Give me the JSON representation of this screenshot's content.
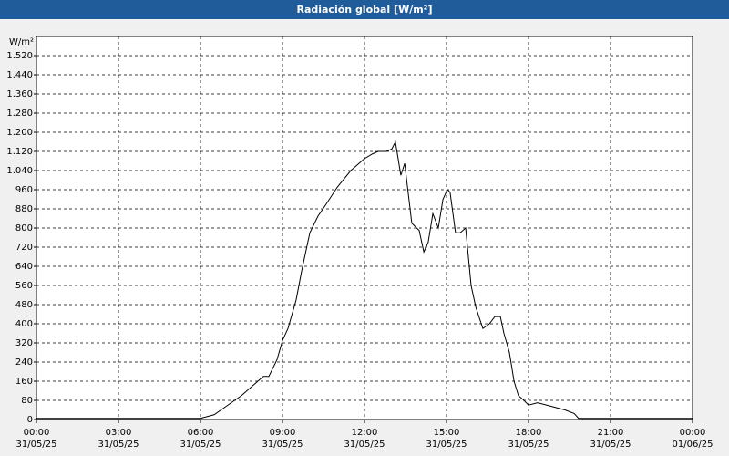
{
  "chart_data": {
    "type": "line",
    "title": "Radiación global [W/m²]",
    "y_label": "W/m²",
    "x": [
      0,
      3,
      6,
      6.5,
      7,
      7.5,
      8,
      8.3,
      8.5,
      8.8,
      9,
      9.2,
      9.5,
      9.7,
      10,
      10.3,
      10.6,
      11,
      11.5,
      12,
      12.3,
      12.5,
      12.8,
      13,
      13.13,
      13.33,
      13.47,
      13.73,
      14,
      14.17,
      14.33,
      14.5,
      14.7,
      14.87,
      15.03,
      15.13,
      15.33,
      15.5,
      15.7,
      15.9,
      16.07,
      16.33,
      16.57,
      16.77,
      16.97,
      17.1,
      17.3,
      17.47,
      17.63,
      17.83,
      18,
      18.33,
      18.67,
      19.33,
      19.67,
      19.83,
      24
    ],
    "series": [
      {
        "name": "Radiación global",
        "color": "#000000",
        "values": [
          5,
          5,
          5,
          20,
          60,
          100,
          150,
          180,
          180,
          250,
          330,
          380,
          500,
          620,
          780,
          850,
          900,
          970,
          1040,
          1090,
          1110,
          1120,
          1120,
          1130,
          1160,
          1020,
          1070,
          820,
          790,
          700,
          740,
          860,
          800,
          920,
          960,
          950,
          780,
          780,
          800,
          560,
          470,
          380,
          400,
          430,
          430,
          360,
          280,
          160,
          100,
          80,
          60,
          70,
          60,
          40,
          25,
          5,
          5
        ]
      }
    ],
    "xlim": [
      0,
      24
    ],
    "ylim": [
      0,
      1600
    ],
    "xticks": [
      {
        "value": 0,
        "label": "00:00\n31/05/25"
      },
      {
        "value": 3,
        "label": "03:00\n31/05/25"
      },
      {
        "value": 6,
        "label": "06:00\n31/05/25"
      },
      {
        "value": 9,
        "label": "09:00\n31/05/25"
      },
      {
        "value": 12,
        "label": "12:00\n31/05/25"
      },
      {
        "value": 15,
        "label": "15:00\n31/05/25"
      },
      {
        "value": 18,
        "label": "18:00\n31/05/25"
      },
      {
        "value": 21,
        "label": "21:00\n31/05/25"
      },
      {
        "value": 24,
        "label": "00:00\n01/06/25"
      }
    ],
    "yticks": [
      0,
      80,
      160,
      240,
      320,
      400,
      480,
      560,
      640,
      720,
      800,
      880,
      960,
      {
        "value": 1040,
        "label": "1.040"
      },
      {
        "value": 1120,
        "label": "1.120"
      },
      {
        "value": 1200,
        "label": "1.200"
      },
      {
        "value": 1280,
        "label": "1.280"
      },
      {
        "value": 1360,
        "label": "1.360"
      },
      {
        "value": 1440,
        "label": "1.440"
      },
      {
        "value": 1520,
        "label": "1.520"
      }
    ],
    "grid": true
  }
}
